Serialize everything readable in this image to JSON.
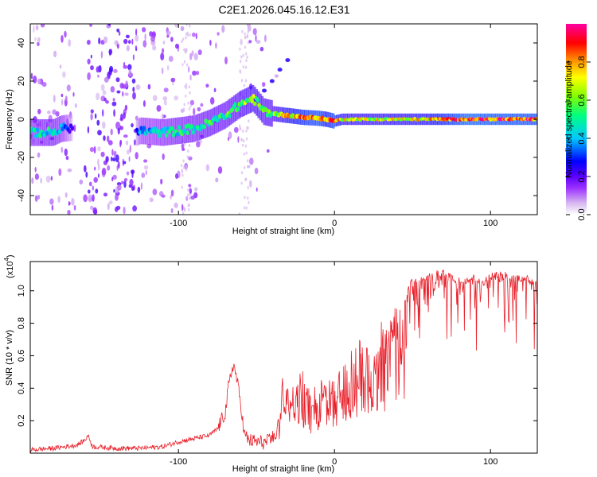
{
  "chart_data": [
    {
      "type": "heatmap",
      "title": "C2E1.2026.045.16.12.E31",
      "xlabel": "Height of straight line (km)",
      "ylabel": "Frequency (Hz)",
      "xlim": [
        -195,
        130
      ],
      "ylim": [
        -50,
        50
      ],
      "xticks": [
        -100,
        0,
        100
      ],
      "xtick_labels": [
        "-100",
        "0",
        "100"
      ],
      "yticks": [
        -40,
        -20,
        0,
        20,
        40
      ],
      "ytick_labels": [
        "-40",
        "-20",
        "0",
        "20",
        "40"
      ],
      "colorbar": {
        "label": "Normalized spectral amplitude",
        "range": [
          0,
          1
        ],
        "ticks": [
          0.0,
          0.2,
          0.4,
          0.6,
          0.8
        ],
        "tick_labels": [
          "0.0",
          "0.2",
          "0.4",
          "0.6",
          "0.8"
        ],
        "colormap": [
          "#ffffff",
          "#d8b8f0",
          "#9b30ff",
          "#5a00ff",
          "#0000ff",
          "#00c8ff",
          "#00ff80",
          "#80ff00",
          "#ffff00",
          "#ff8000",
          "#ff0000",
          "#ff00a0"
        ]
      },
      "ridge": {
        "x": [
          -195,
          -180,
          -175,
          -165,
          -160,
          -150,
          -140,
          -130,
          -124,
          -110,
          -100,
          -90,
          -80,
          -70,
          -60,
          -52,
          -45,
          -40,
          -30,
          -20,
          -10,
          -5,
          0,
          5,
          20,
          40,
          60,
          85,
          100,
          130
        ],
        "freq": [
          -7,
          -7,
          -5,
          -4,
          -3,
          -4,
          -6,
          -8,
          -6,
          -7,
          -6,
          -5,
          -2,
          2,
          8,
          11,
          4,
          3,
          2,
          1,
          0.5,
          0,
          -1,
          0,
          0,
          0,
          0,
          0,
          0,
          0
        ],
        "amplitude": [
          0.45,
          0.5,
          0.45,
          0.1,
          0.1,
          0.05,
          0.05,
          0.05,
          0.4,
          0.45,
          0.5,
          0.5,
          0.55,
          0.55,
          0.6,
          0.65,
          0.6,
          0.6,
          0.75,
          0.85,
          0.9,
          0.8,
          0.9,
          0.7,
          0.7,
          0.72,
          0.75,
          0.95,
          0.92,
          0.9
        ]
      },
      "chirp_branch": {
        "x": [
          -50,
          -45,
          -40,
          -35,
          -30
        ],
        "freq": [
          10,
          15,
          20,
          26,
          31
        ],
        "amplitude": 0.25
      }
    },
    {
      "type": "line",
      "xlabel": "Height of straight line (km)",
      "ylabel": "SNR (10 * v/v)",
      "scale_label": "(x10",
      "scale_exponent": "4",
      "scale_close": ")",
      "xlim": [
        -195,
        130
      ],
      "ylim": [
        0,
        11800
      ],
      "xticks": [
        -100,
        0,
        100
      ],
      "xtick_labels": [
        "-100",
        "0",
        "100"
      ],
      "yticks": [
        2000,
        4000,
        6000,
        8000,
        10000
      ],
      "ytick_labels": [
        "0.2",
        "0.4",
        "0.6",
        "0.8",
        "1.0"
      ],
      "series": [
        {
          "name": "SNR",
          "color": "#e8202a",
          "x": [
            -195,
            -180,
            -165,
            -160,
            -158,
            -155,
            -140,
            -125,
            -110,
            -100,
            -90,
            -80,
            -75,
            -70,
            -68,
            -65,
            -63,
            -60,
            -58,
            -55,
            -50,
            -45,
            -40,
            -37,
            -35,
            -33,
            -30,
            -25,
            -20,
            -15,
            -10,
            -5,
            -2,
            0,
            5,
            10,
            15,
            20,
            25,
            30,
            35,
            40,
            45,
            50,
            60,
            70,
            80,
            90,
            95,
            100,
            110,
            120,
            130
          ],
          "values": [
            200,
            300,
            500,
            800,
            1100,
            400,
            300,
            300,
            400,
            700,
            900,
            1100,
            1500,
            2500,
            4000,
            5500,
            4800,
            3000,
            1200,
            800,
            700,
            650,
            800,
            1500,
            2800,
            4500,
            3800,
            4200,
            4600,
            3500,
            3800,
            4500,
            4000,
            4000,
            5500,
            6200,
            6600,
            6300,
            7500,
            7800,
            8200,
            9200,
            9400,
            10700,
            10900,
            11100,
            10600,
            10800,
            10500,
            10900,
            11000,
            10800,
            10500
          ]
        }
      ]
    }
  ]
}
